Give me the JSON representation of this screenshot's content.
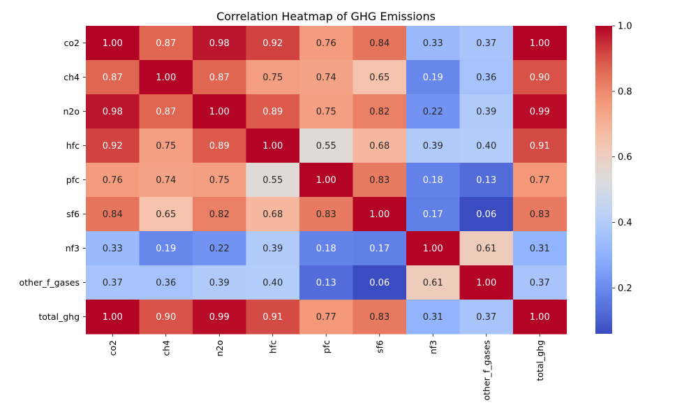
{
  "chart_data": {
    "type": "heatmap",
    "title": "Correlation Heatmap of GHG Emissions",
    "xlabel": "",
    "ylabel": "",
    "rows": [
      "co2",
      "ch4",
      "n2o",
      "hfc",
      "pfc",
      "sf6",
      "nf3",
      "other_f_gases",
      "total_ghg"
    ],
    "columns": [
      "co2",
      "ch4",
      "n2o",
      "hfc",
      "pfc",
      "sf6",
      "nf3",
      "other_f_gases",
      "total_ghg"
    ],
    "values": [
      [
        1.0,
        0.87,
        0.98,
        0.92,
        0.76,
        0.84,
        0.33,
        0.37,
        1.0
      ],
      [
        0.87,
        1.0,
        0.87,
        0.75,
        0.74,
        0.65,
        0.19,
        0.36,
        0.9
      ],
      [
        0.98,
        0.87,
        1.0,
        0.89,
        0.75,
        0.82,
        0.22,
        0.39,
        0.99
      ],
      [
        0.92,
        0.75,
        0.89,
        1.0,
        0.55,
        0.68,
        0.39,
        0.4,
        0.91
      ],
      [
        0.76,
        0.74,
        0.75,
        0.55,
        1.0,
        0.83,
        0.18,
        0.13,
        0.77
      ],
      [
        0.84,
        0.65,
        0.82,
        0.68,
        0.83,
        1.0,
        0.17,
        0.06,
        0.83
      ],
      [
        0.33,
        0.19,
        0.22,
        0.39,
        0.18,
        0.17,
        1.0,
        0.61,
        0.31
      ],
      [
        0.37,
        0.36,
        0.39,
        0.4,
        0.13,
        0.06,
        0.61,
        1.0,
        0.37
      ],
      [
        1.0,
        0.9,
        0.99,
        0.91,
        0.77,
        0.83,
        0.31,
        0.37,
        1.0
      ]
    ],
    "colormap": "coolwarm",
    "vmin": 0.06,
    "vmax": 1.0,
    "colorbar_ticks": [
      0.2,
      0.4,
      0.6,
      0.8,
      1.0
    ],
    "colorbar_tick_labels": [
      "0.2",
      "0.4",
      "0.6",
      "0.8",
      "1.0"
    ],
    "grid": false,
    "colorbar_placement": "right"
  }
}
